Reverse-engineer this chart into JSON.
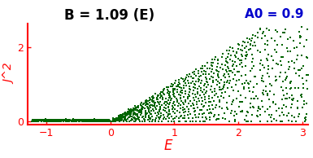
{
  "title": "B = 1.09 (E)",
  "annotation": "A0 = 0.9",
  "xlabel": "E",
  "ylabel": "J^2",
  "xlim": [
    -1.3,
    3.1
  ],
  "ylim": [
    -0.08,
    2.65
  ],
  "xticks": [
    -1,
    0,
    1,
    2,
    3
  ],
  "yticks": [
    0,
    2
  ],
  "dot_color": "#006400",
  "axis_color": "#ff0000",
  "title_color": "#000000",
  "annotation_color": "#0000cc",
  "B": 1.09,
  "A0": 0.9,
  "num_levels": 22,
  "figsize": [
    3.85,
    1.94
  ],
  "dpi": 100
}
